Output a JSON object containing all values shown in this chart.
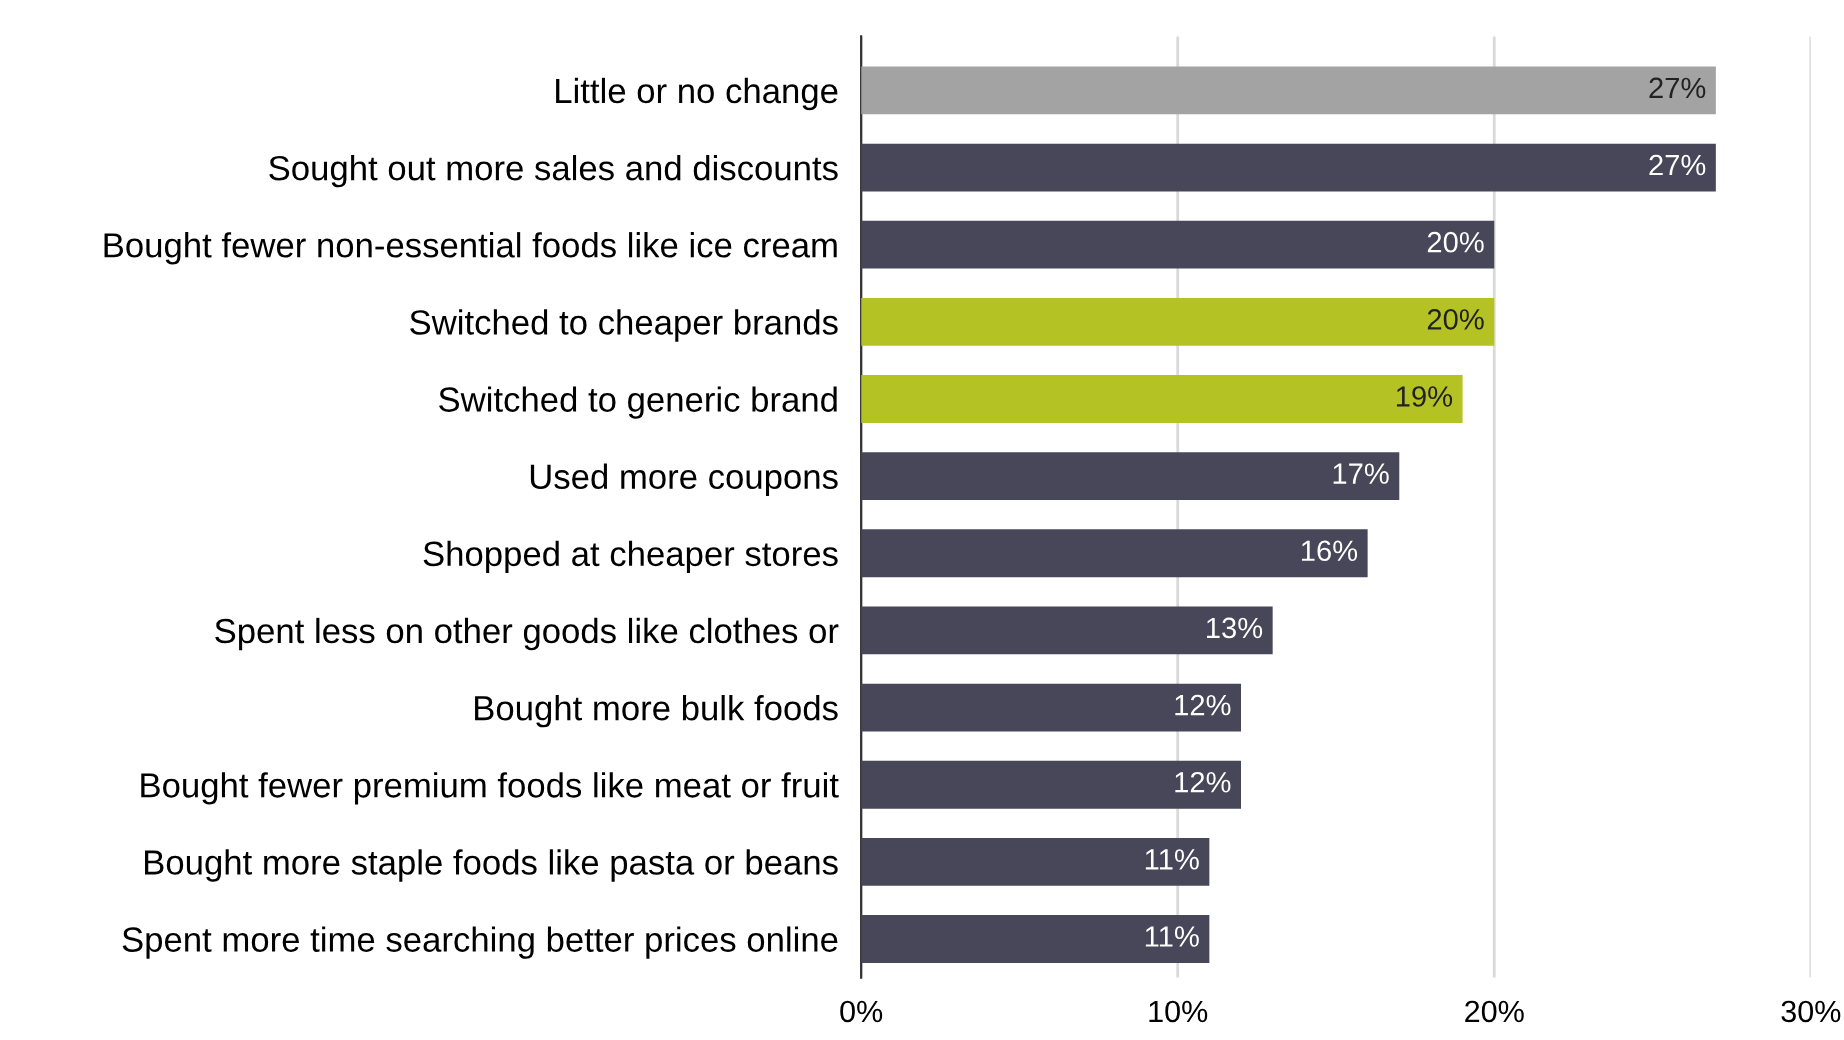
{
  "chart_data": {
    "type": "bar",
    "orientation": "horizontal",
    "categories": [
      "Little or no change",
      "Sought out more sales and discounts",
      "Bought fewer non-essential foods like ice cream",
      "Switched to cheaper brands",
      "Switched to generic brand",
      "Used more coupons",
      "Shopped at cheaper stores",
      "Spent less on other goods like clothes or",
      "Bought more bulk foods",
      "Bought fewer premium foods like meat or fruit",
      "Bought more staple foods like pasta or beans",
      "Spent more time searching better prices online"
    ],
    "values": [
      27,
      27,
      20,
      20,
      19,
      17,
      16,
      13,
      12,
      12,
      11,
      11
    ],
    "colors": [
      "#a3a3a3",
      "#484759",
      "#484759",
      "#b5c224",
      "#b5c224",
      "#484759",
      "#484759",
      "#484759",
      "#484759",
      "#484759",
      "#484759",
      "#484759"
    ],
    "value_labels": [
      "27%",
      "27%",
      "20%",
      "20%",
      "19%",
      "17%",
      "16%",
      "13%",
      "12%",
      "12%",
      "11%",
      "11%"
    ],
    "xlim": [
      0,
      30
    ],
    "xticks": [
      {
        "value": 0,
        "label": "0%"
      },
      {
        "value": 10,
        "label": "10%"
      },
      {
        "value": 20,
        "label": "20%"
      },
      {
        "value": 30,
        "label": "30%"
      }
    ],
    "grid": "x",
    "legend": false
  }
}
